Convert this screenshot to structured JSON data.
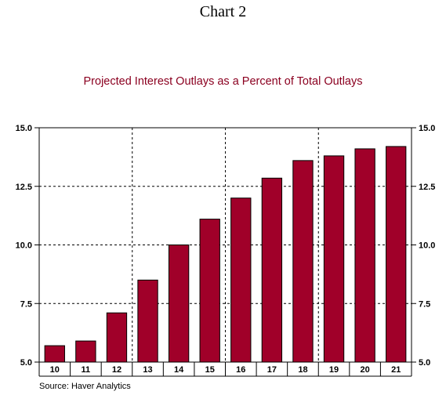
{
  "heading": "Chart 2",
  "source": "Source: Haver Analytics",
  "colors": {
    "bar": "#a00029",
    "title": "#8b0020",
    "grid": "#000000"
  },
  "chart_data": {
    "type": "bar",
    "title": "Projected Interest Outlays as a Percent of Total Outlays",
    "xlabel": "",
    "ylabel": "",
    "categories": [
      "10",
      "11",
      "12",
      "13",
      "14",
      "15",
      "16",
      "17",
      "18",
      "19",
      "20",
      "21"
    ],
    "values": [
      5.7,
      5.9,
      7.1,
      8.5,
      10.0,
      11.1,
      12.0,
      12.85,
      13.6,
      13.8,
      14.1,
      14.2
    ],
    "ylim": [
      5.0,
      15.0
    ],
    "yticks": [
      "5.0",
      "7.5",
      "10.0",
      "12.5",
      "15.0"
    ],
    "ytick_values": [
      5.0,
      7.5,
      10.0,
      12.5,
      15.0
    ],
    "right_axis": true,
    "grid": true,
    "legend": "none"
  }
}
